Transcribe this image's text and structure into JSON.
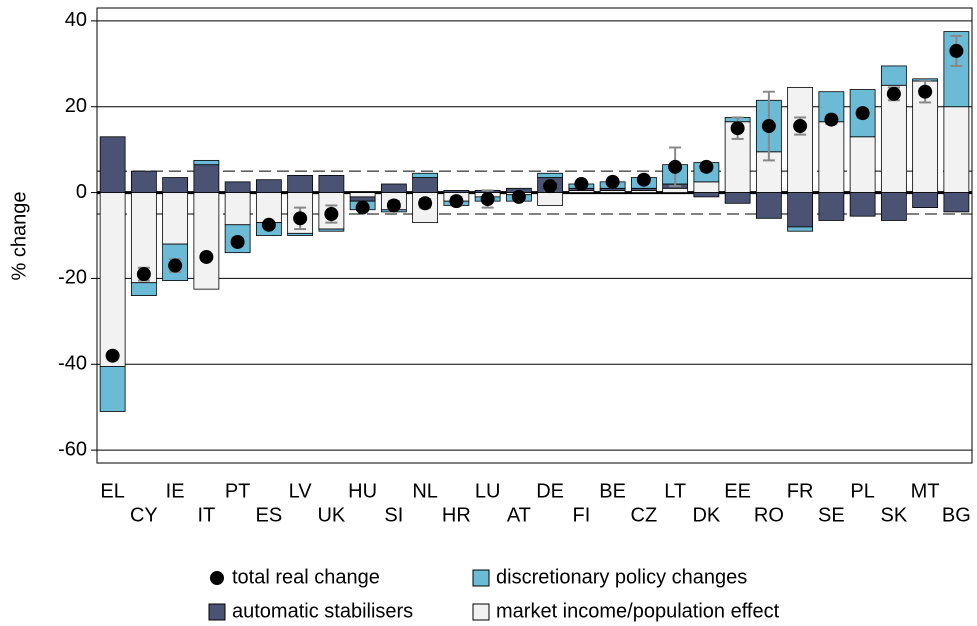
{
  "chart_data": {
    "type": "stacked-bar",
    "y_label": "% change",
    "categories": [
      "EL",
      "CY",
      "IE",
      "IT",
      "PT",
      "ES",
      "LV",
      "UK",
      "HU",
      "SI",
      "NL",
      "HR",
      "LU",
      "AT",
      "DE",
      "FI",
      "BE",
      "CZ",
      "LT",
      "DK",
      "EE",
      "RO",
      "FR",
      "SE",
      "PL",
      "SK",
      "MT",
      "BG"
    ],
    "series": [
      {
        "name": "discretionary policy changes",
        "color": "#6bbad6",
        "values": [
          -10.5,
          -3,
          -8.5,
          1,
          -6.5,
          -3,
          -0.5,
          -0.5,
          -2,
          -0.5,
          1,
          -1,
          -1,
          -1.5,
          1,
          1,
          1.5,
          2.5,
          4.5,
          4.5,
          1,
          12,
          -1,
          7,
          11,
          4.5,
          0.5,
          17.5
        ]
      },
      {
        "name": "automatic stabilisers",
        "color": "#4a5374",
        "values": [
          13,
          5,
          3.5,
          6.5,
          2.5,
          3,
          4,
          4,
          -1,
          2,
          3.5,
          0.5,
          0.5,
          1,
          3.5,
          0.5,
          0.5,
          0.5,
          1,
          -1,
          -2.5,
          -6,
          -8,
          -6.5,
          -5.5,
          -6.5,
          -3.5,
          -4.5
        ]
      },
      {
        "name": "market income/population effect",
        "color": "#f2f2f2",
        "values": [
          -40.5,
          -21,
          -12,
          -22.5,
          -7.5,
          -7,
          -9.5,
          -8.5,
          -1,
          -4,
          -7,
          -2,
          -1,
          -0.5,
          -3,
          0.5,
          0.5,
          0.5,
          1,
          2.5,
          16.5,
          9.5,
          24.5,
          16.5,
          13,
          25,
          26,
          20
        ]
      }
    ],
    "points": {
      "name": "total real change",
      "color": "#000000",
      "error_color": "#888888",
      "values": [
        -38,
        -19,
        -17,
        -15,
        -11.5,
        -7.5,
        -6,
        -5,
        -3.5,
        -3,
        -2.5,
        -2,
        -1.5,
        -1,
        1.5,
        2,
        2.5,
        3,
        6,
        6,
        15,
        15.5,
        15.5,
        17,
        18.5,
        23,
        23.5,
        33
      ],
      "errors": [
        0,
        1.5,
        1.5,
        0,
        1,
        0.5,
        2.5,
        2,
        0.5,
        1,
        1,
        1,
        2,
        0.5,
        1,
        0.5,
        0.5,
        0.5,
        4.5,
        1,
        2.5,
        8,
        2,
        1,
        1,
        1.5,
        2.5,
        3.5
      ]
    },
    "reference_lines": [
      5,
      -5
    ],
    "ylim": [
      -63,
      43
    ],
    "yticks": [
      -60,
      -40,
      -20,
      0,
      20,
      40
    ],
    "grid": true
  }
}
